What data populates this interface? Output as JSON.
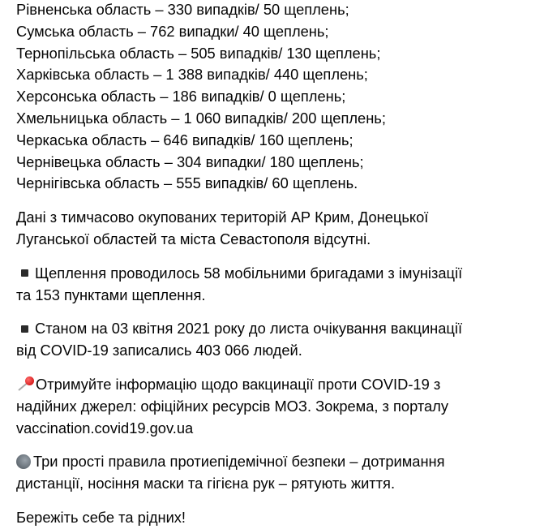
{
  "regions": [
    "Рівненська область – 330 випадків/ 50 щеплень;",
    "Сумська область – 762 випадки/ 40 щеплень;",
    "Тернопільська область – 505 випадків/ 130 щеплень;",
    "Харківська область – 1 388 випадків/ 440 щеплень;",
    "Херсонська область – 186 випадків/ 0 щеплень;",
    "Хмельницька область – 1 060 випадків/ 200 щеплень;",
    "Черкаська область – 646 випадків/ 160 щеплень;",
    "Чернівецька область – 304 випадки/ 180 щеплень;",
    "Чернігівська область – 555 випадків/ 60 щеплень."
  ],
  "occupied": [
    "Дані з тимчасово окупованих територій АР Крим, Донецької",
    "Луганської областей та міста Севастополя відсутні."
  ],
  "brigades": [
    "Щеплення проводилось 58 мобільними бригадами з імунізації",
    "та 153 пунктами щеплення."
  ],
  "waitlist": [
    "Станом на 03 квітня 2021 року до листа очікування вакцинації",
    "від COVID-19 записались 403 066 людей."
  ],
  "info": [
    "Отримуйте інформацію щодо вакцинації проти COVID-19 з",
    "надійних джерел: офіційних ресурсів МОЗ. Зокрема, з порталу",
    "vaccination.covid19.gov.ua"
  ],
  "rules": [
    "Три прості правила протиепідемічної безпеки – дотримання",
    "дистанції, носіння маски та гігієна рук – рятують життя."
  ],
  "closing": "Бережіть себе та рідних!",
  "icons": {
    "bullet": "black-small-square",
    "info": "round-pushpin",
    "rules": "speaker"
  }
}
